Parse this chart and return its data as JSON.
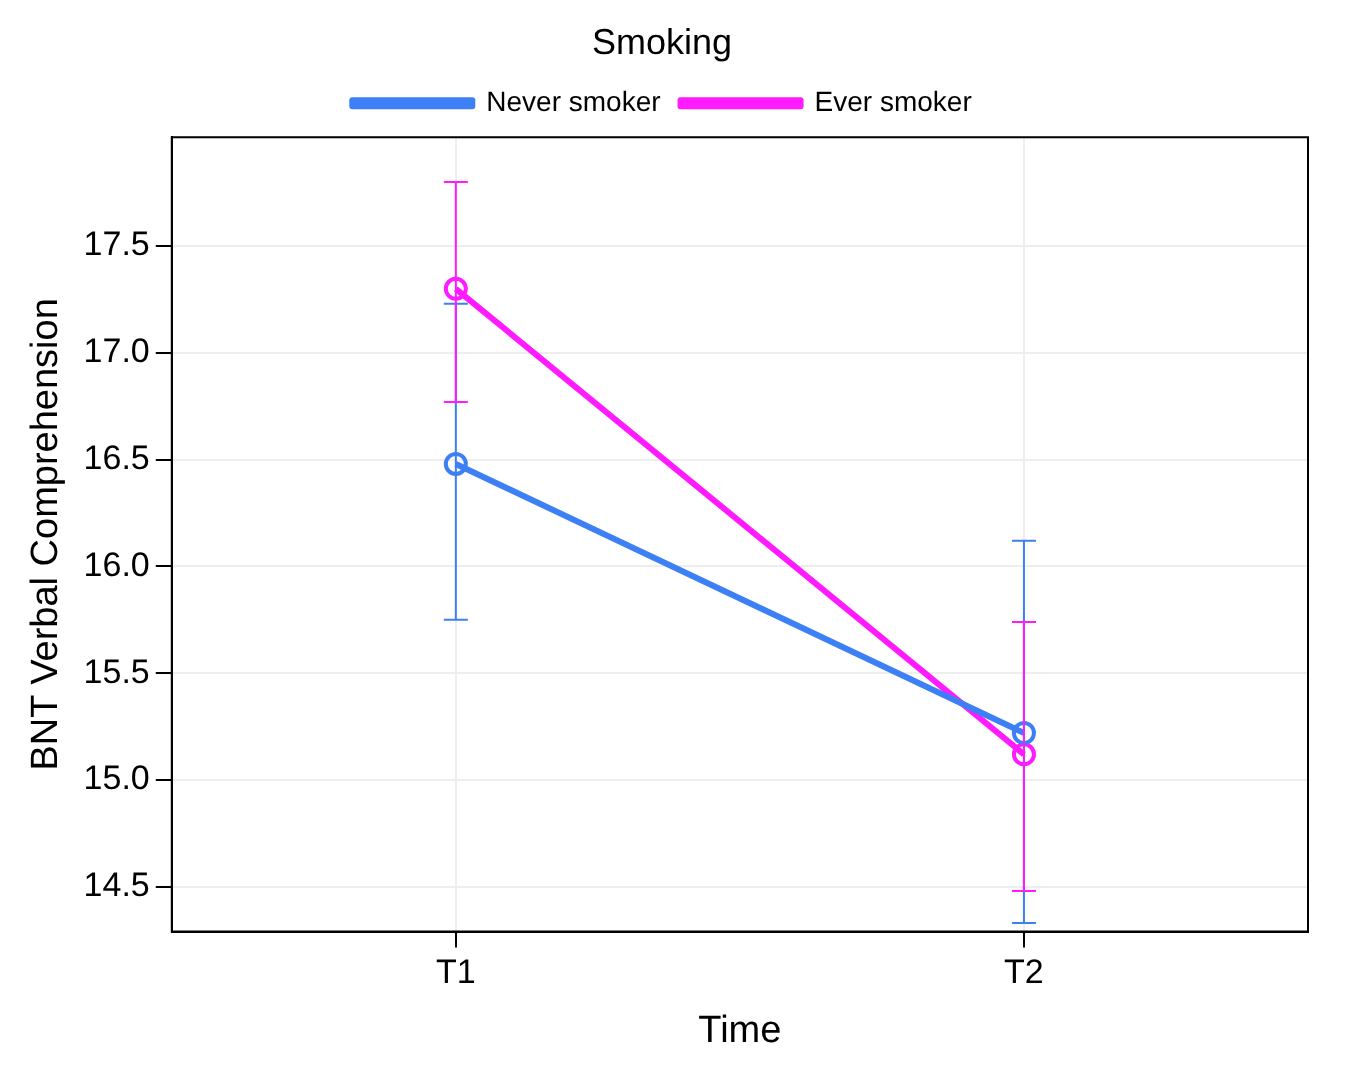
{
  "chart_data": {
    "type": "line",
    "xlabel": "Time",
    "ylabel": "BNT Verbal Comprehension",
    "legend_title": "Smoking",
    "categories": [
      "T1",
      "T2"
    ],
    "series": [
      {
        "name": "Never smoker",
        "color": "#3d7ff5",
        "values": [
          16.48,
          15.22
        ],
        "errors": [
          [
            15.75,
            17.23
          ],
          [
            14.33,
            16.12
          ]
        ]
      },
      {
        "name": "Ever smoker",
        "color": "#ff1aff",
        "values": [
          17.3,
          15.12
        ],
        "errors": [
          [
            16.77,
            17.8
          ],
          [
            14.48,
            15.74
          ]
        ]
      }
    ],
    "ylim": [
      14.29,
      18.01
    ],
    "yticks": [
      14.5,
      {
        "value": 15,
        "label": "15.0"
      },
      15.5,
      {
        "value": 16,
        "label": "16.0"
      },
      16.5,
      {
        "value": 17,
        "label": "17.0"
      },
      17.5
    ],
    "grid": true,
    "legend": "top",
    "marker": "circle",
    "line_style": "solid"
  }
}
